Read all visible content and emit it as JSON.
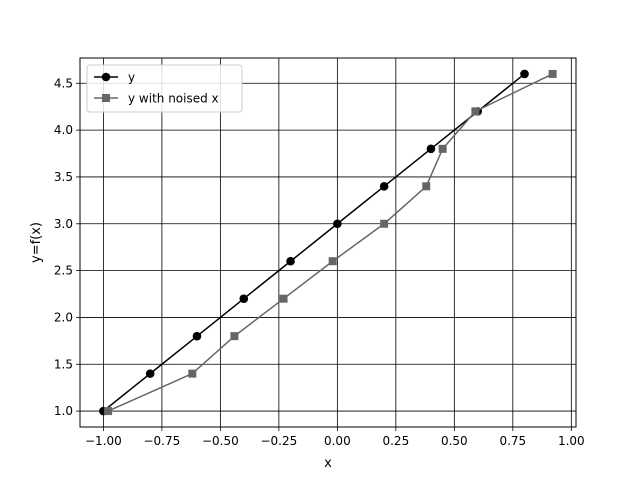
{
  "chart_data": {
    "type": "line",
    "title": "",
    "xlabel": "x",
    "ylabel": "y=f(x)",
    "xlim": [
      -1.1,
      1.02
    ],
    "ylim": [
      0.83,
      4.77
    ],
    "xticks": [
      -1.0,
      -0.75,
      -0.5,
      -0.25,
      0.0,
      0.25,
      0.5,
      0.75,
      1.0
    ],
    "xtick_labels": [
      "−1.00",
      "−0.75",
      "−0.50",
      "−0.25",
      "0.00",
      "0.25",
      "0.50",
      "0.75",
      "1.00"
    ],
    "yticks": [
      1.0,
      1.5,
      2.0,
      2.5,
      3.0,
      3.5,
      4.0,
      4.5
    ],
    "ytick_labels": [
      "1.0",
      "1.5",
      "2.0",
      "2.5",
      "3.0",
      "3.5",
      "4.0",
      "4.5"
    ],
    "grid": true,
    "legend_position": "upper-left",
    "series": [
      {
        "name": "y",
        "color": "#000000",
        "marker": "circle",
        "x": [
          -1.0,
          -0.8,
          -0.6,
          -0.4,
          -0.2,
          0.0,
          0.2,
          0.4,
          0.6,
          0.8
        ],
        "y": [
          1.0,
          1.4,
          1.8,
          2.2,
          2.6,
          3.0,
          3.4,
          3.8,
          4.2,
          4.6
        ]
      },
      {
        "name": "y with noised x",
        "color": "#666666",
        "marker": "square",
        "x": [
          -0.98,
          -0.62,
          -0.44,
          -0.23,
          -0.02,
          0.2,
          0.38,
          0.45,
          0.59,
          0.92
        ],
        "y": [
          1.0,
          1.4,
          1.8,
          2.2,
          2.6,
          3.0,
          3.4,
          3.8,
          4.2,
          4.6
        ]
      }
    ]
  }
}
